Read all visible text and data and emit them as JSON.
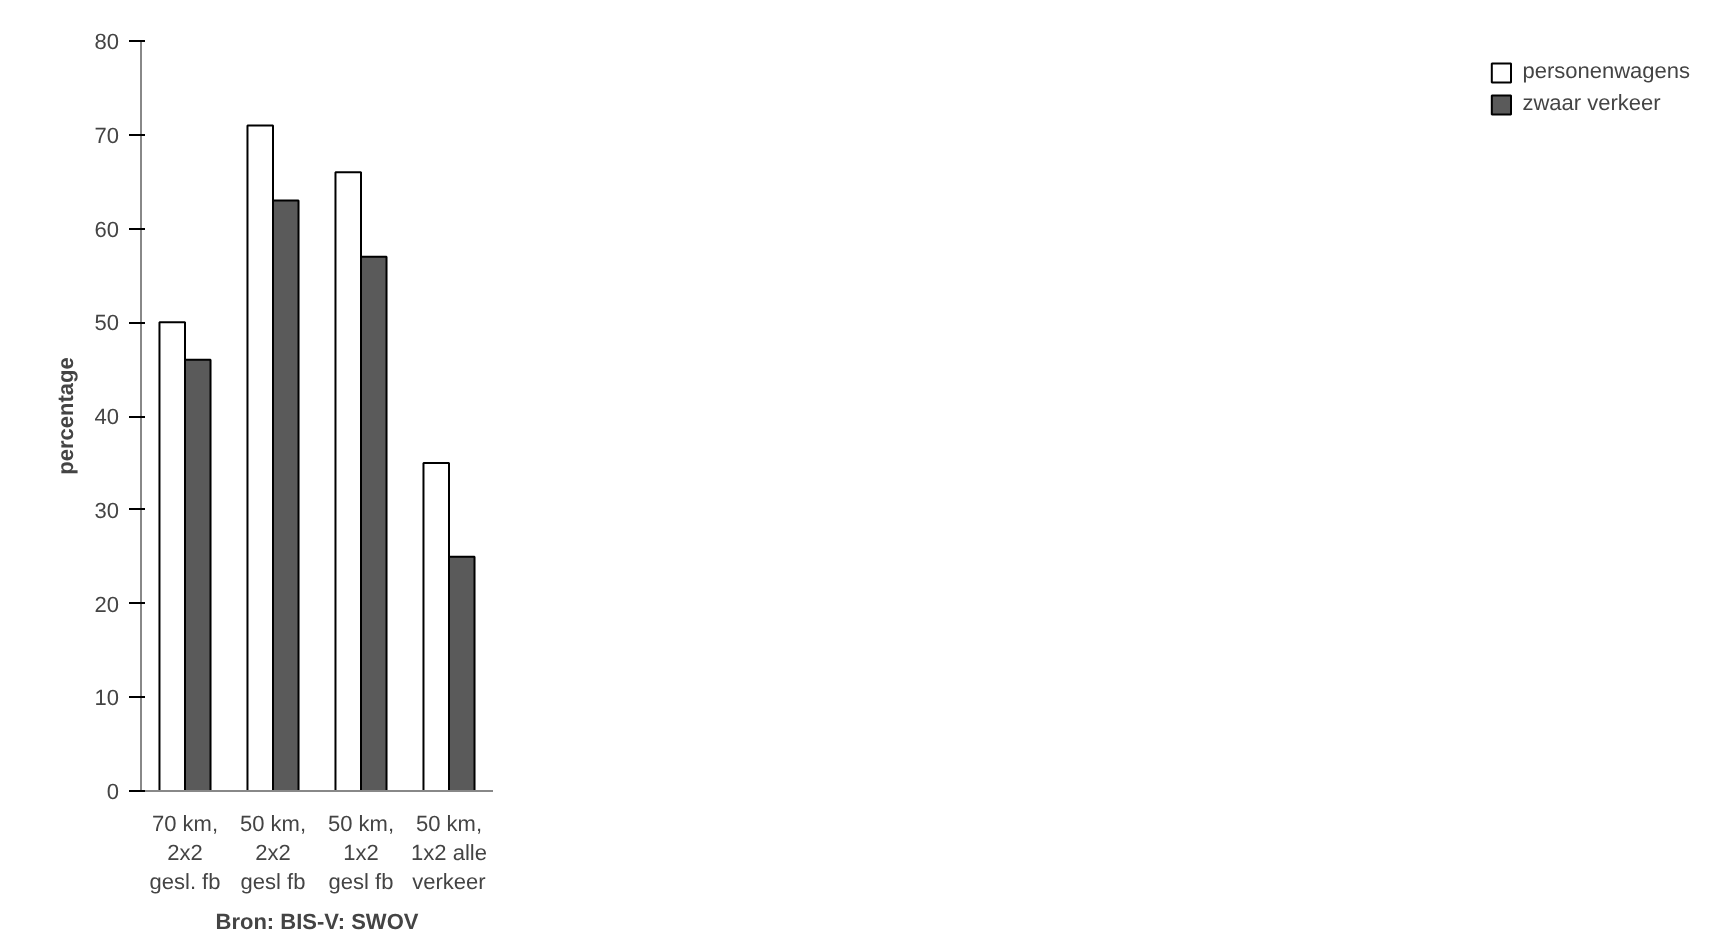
{
  "chart_data": {
    "type": "bar",
    "xlabel": "Bron: BIS-V: SWOV",
    "ylabel": "percentage",
    "categories": [
      "70 km,\n2x2\ngesl. fb",
      "50 km,\n2x2\ngesl fb",
      "50 km,\n1x2\ngesl fb",
      "50 km,\n1x2 alle\nverkeer"
    ],
    "series": [
      {
        "name": "personenwagens",
        "color": "#ffffff",
        "values": [
          50,
          71,
          66,
          35
        ]
      },
      {
        "name": "zwaar verkeer",
        "color": "#5a5a5a",
        "values": [
          46,
          63,
          57,
          25
        ]
      }
    ],
    "ylim": [
      0,
      80
    ],
    "yticks": [
      0,
      10,
      20,
      30,
      40,
      50,
      60,
      70,
      80
    ],
    "grid": false,
    "legend": "right"
  }
}
